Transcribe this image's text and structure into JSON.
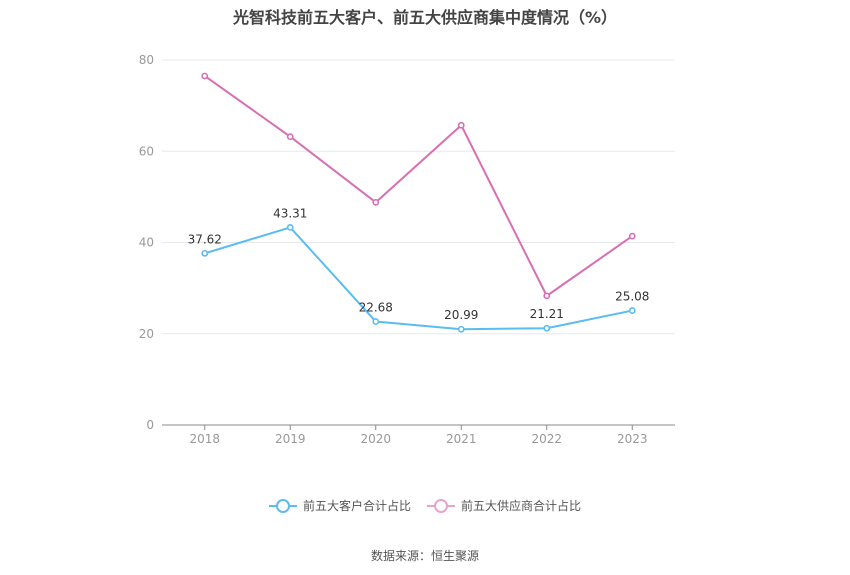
{
  "chart_data": {
    "type": "line",
    "title": "光智科技前五大客户、前五大供应商集中度情况（%）",
    "categories": [
      "2018",
      "2019",
      "2020",
      "2021",
      "2022",
      "2023"
    ],
    "ylim": [
      0,
      80
    ],
    "yticks": [
      "0",
      "20",
      "40",
      "60",
      "80"
    ],
    "grid": true,
    "legend_position": "bottom",
    "series": [
      {
        "name": "前五大客户合计占比",
        "color": "#5bbcf0",
        "values": [
          37.62,
          43.31,
          22.68,
          20.99,
          21.21,
          25.08
        ],
        "labels": [
          "37.62",
          "43.31",
          "22.68",
          "20.99",
          "21.21",
          "25.08"
        ]
      },
      {
        "name": "前五大供应商合计占比",
        "color": "#d86fb3",
        "values": [
          76.5,
          63.2,
          48.8,
          65.7,
          28.3,
          41.4
        ]
      }
    ]
  },
  "source": "数据来源：恒生聚源"
}
